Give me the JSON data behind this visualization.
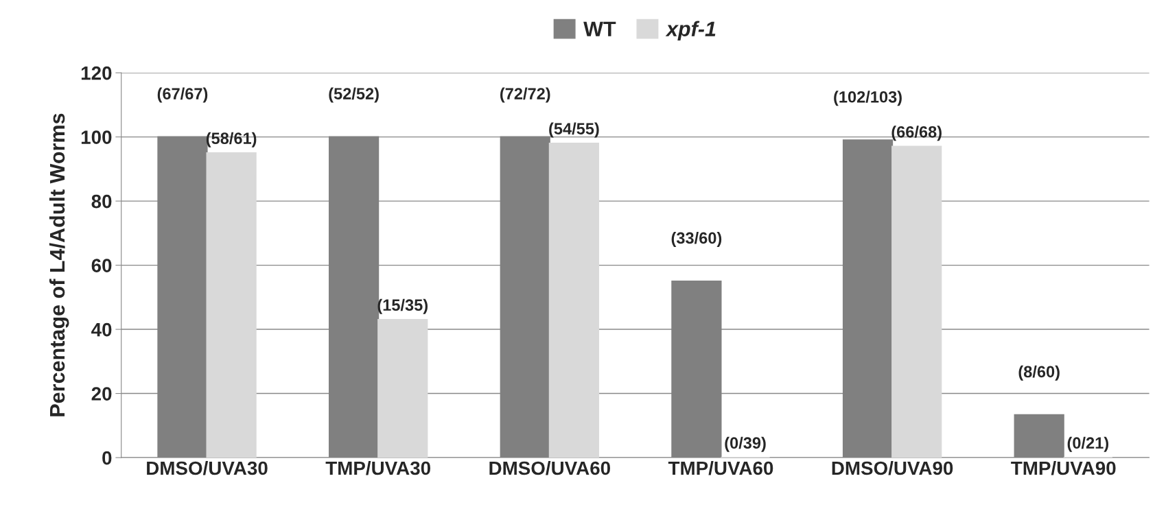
{
  "chart_data": {
    "type": "bar",
    "ylabel": "Percentage of L4/Adult Worms",
    "categories": [
      "DMSO/UVA30",
      "TMP/UVA30",
      "DMSO/UVA60",
      "TMP/UVA60",
      "DMSO/UVA90",
      "TMP/UVA90"
    ],
    "series": [
      {
        "name": "WT",
        "color": "#808080",
        "values": [
          100,
          100,
          100,
          55,
          99,
          13.3
        ],
        "value_labels": [
          "(67/67)",
          "(52/52)",
          "(72/72)",
          "(33/60)",
          "(102/103)",
          "(8/60)"
        ]
      },
      {
        "name": "xpf-1",
        "color": "#d9d9d9",
        "values": [
          95,
          43,
          98,
          0,
          97,
          0
        ],
        "value_labels": [
          "(58/61)",
          "(15/35)",
          "(54/55)",
          "(0/39)",
          "(66/68)",
          "(0/21)"
        ]
      }
    ],
    "ylim": [
      0,
      120
    ],
    "yticks": [
      0,
      20,
      40,
      60,
      80,
      100,
      120
    ],
    "grid": "y",
    "legend": "top"
  }
}
